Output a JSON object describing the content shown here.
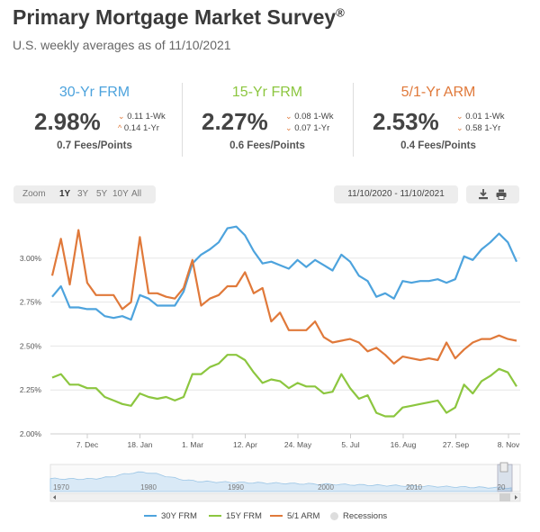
{
  "header": {
    "title": "Primary Mortgage Market Survey",
    "title_mark": "®",
    "subtitle": "U.S. weekly averages as of 11/10/2021"
  },
  "stats": [
    {
      "name": "30-Yr FRM",
      "rate": "2.98%",
      "wk": "0.11 1-Wk",
      "yr": "0.14 1-Yr",
      "wk_dir": "down",
      "yr_dir": "up",
      "fees": "0.7 Fees/Points",
      "color": "#4da3dd"
    },
    {
      "name": "15-Yr FRM",
      "rate": "2.27%",
      "wk": "0.08 1-Wk",
      "yr": "0.07 1-Yr",
      "wk_dir": "down",
      "yr_dir": "down",
      "fees": "0.6 Fees/Points",
      "color": "#8cc63f"
    },
    {
      "name": "5/1-Yr ARM",
      "rate": "2.53%",
      "wk": "0.01 1-Wk",
      "yr": "0.58 1-Yr",
      "wk_dir": "down",
      "yr_dir": "down",
      "fees": "0.4 Fees/Points",
      "color": "#e0793a"
    }
  ],
  "toolbar": {
    "zoom_label": "Zoom",
    "zoom_options": [
      "1Y",
      "3Y",
      "5Y",
      "10Y",
      "All"
    ],
    "zoom_selected": "1Y",
    "date_range": "11/10/2020 - 11/10/2021",
    "download_icon": "download-icon",
    "print_icon": "print-icon"
  },
  "chart_data": {
    "type": "line",
    "ylim": [
      2.0,
      3.25
    ],
    "y_ticks": [
      "3.00%",
      "2.75%",
      "2.50%",
      "2.25%",
      "2.00%"
    ],
    "x_ticks": [
      "7. Dec",
      "18. Jan",
      "1. Mar",
      "12. Apr",
      "24. May",
      "5. Jul",
      "16. Aug",
      "27. Sep",
      "8. Nov"
    ],
    "series": [
      {
        "name": "30Y FRM",
        "color": "#4da3dd",
        "values": [
          2.78,
          2.84,
          2.72,
          2.72,
          2.71,
          2.71,
          2.67,
          2.66,
          2.67,
          2.65,
          2.79,
          2.77,
          2.73,
          2.73,
          2.73,
          2.81,
          2.97,
          3.02,
          3.05,
          3.09,
          3.17,
          3.18,
          3.13,
          3.04,
          2.97,
          2.98,
          2.96,
          2.94,
          2.99,
          2.95,
          2.99,
          2.96,
          2.93,
          3.02,
          2.98,
          2.9,
          2.87,
          2.78,
          2.8,
          2.77,
          2.87,
          2.86,
          2.87,
          2.87,
          2.88,
          2.86,
          2.88,
          3.01,
          2.99,
          3.05,
          3.09,
          3.14,
          3.09,
          2.98
        ]
      },
      {
        "name": "15Y FRM",
        "color": "#8cc63f",
        "values": [
          2.32,
          2.34,
          2.28,
          2.28,
          2.26,
          2.26,
          2.21,
          2.19,
          2.17,
          2.16,
          2.23,
          2.21,
          2.2,
          2.21,
          2.19,
          2.21,
          2.34,
          2.34,
          2.38,
          2.4,
          2.45,
          2.45,
          2.42,
          2.35,
          2.29,
          2.31,
          2.3,
          2.26,
          2.29,
          2.27,
          2.27,
          2.23,
          2.24,
          2.34,
          2.26,
          2.2,
          2.22,
          2.12,
          2.1,
          2.1,
          2.15,
          2.16,
          2.17,
          2.18,
          2.19,
          2.12,
          2.15,
          2.28,
          2.23,
          2.3,
          2.33,
          2.37,
          2.35,
          2.27
        ]
      },
      {
        "name": "5/1 ARM",
        "color": "#e0793a",
        "values": [
          2.9,
          3.11,
          2.85,
          3.16,
          2.86,
          2.79,
          2.79,
          2.79,
          2.71,
          2.75,
          3.12,
          2.8,
          2.8,
          2.78,
          2.77,
          2.83,
          2.99,
          2.73,
          2.77,
          2.79,
          2.84,
          2.84,
          2.92,
          2.8,
          2.83,
          2.64,
          2.69,
          2.59,
          2.59,
          2.59,
          2.64,
          2.55,
          2.52,
          2.53,
          2.54,
          2.52,
          2.47,
          2.49,
          2.45,
          2.4,
          2.44,
          2.43,
          2.42,
          2.43,
          2.42,
          2.52,
          2.43,
          2.48,
          2.52,
          2.54,
          2.54,
          2.56,
          2.54,
          2.53
        ]
      }
    ],
    "navigator_ticks": [
      "1970",
      "1980",
      "1990",
      "2000",
      "2010",
      "20"
    ],
    "legend": [
      "30Y FRM",
      "15Y FRM",
      "5/1 ARM",
      "Recessions"
    ],
    "legend_position": "bottom",
    "grid": true
  }
}
